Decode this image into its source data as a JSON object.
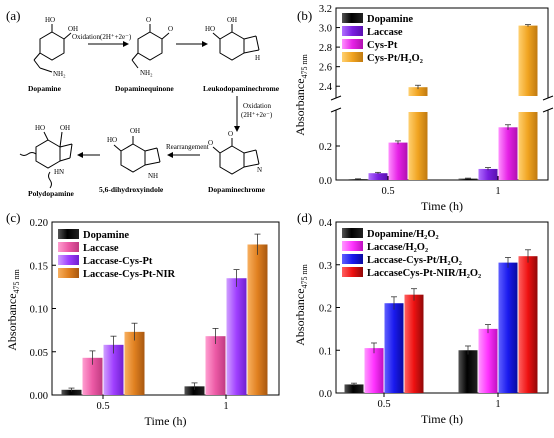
{
  "panels": {
    "a": "(a)",
    "b": "(b)",
    "c": "(c)",
    "d": "(d)"
  },
  "scheme": {
    "compounds": [
      "Dopamine",
      "Dopaminequinone",
      "Leukodopaminechrome",
      "Dopaminechrome",
      "5,6-dihydroxyindole",
      "Polydopamine"
    ],
    "step1": "Oxidation(2H⁺+2e⁻)",
    "step2_line1": "Oxidation",
    "step2_line2": "(2H⁺+2e⁻)",
    "step3": "Rearrangement",
    "atoms": {
      "ho": "HO",
      "oh": "OH",
      "o": "O",
      "nh2": "NH₂",
      "nh": "NH",
      "hn": "HN",
      "n": "N",
      "h": "H"
    }
  },
  "colors": {
    "dopamine": "#000000",
    "laccase": "#7b1fe0",
    "cys_pt": "#e622e6",
    "cys_pt_h2o2": "#f0a320",
    "c_laccase": "#ec5aa6",
    "c_laccase_cys_pt": "#a040ff",
    "c_laccase_cys_pt_nir": "#e08020",
    "d_laccase_h2o2": "#ff33ff",
    "d_laccase_cys_pt_h2o2": "#1a1aee",
    "d_laccase_cys_pt_nir_h2o2": "#ee1111"
  },
  "chart_data": [
    {
      "panel": "b",
      "type": "bar",
      "categories": [
        "0.5",
        "1"
      ],
      "xlabel": "Time (h)",
      "ylabel": "Absorbance",
      "ylabel_sub": "475 nm",
      "axis_break": true,
      "ylim_lower": [
        0,
        0.4
      ],
      "ylim_upper": [
        2.3,
        3.2
      ],
      "yticks_lower": [
        "0.0",
        "0.2"
      ],
      "yticks_upper": [
        "2.4",
        "2.6",
        "2.8",
        "3.0",
        "3.2"
      ],
      "legend_position": "top-left",
      "series": [
        {
          "name": "Dopamine",
          "values": [
            0.005,
            0.008
          ],
          "errors": [
            0.002,
            0.003
          ]
        },
        {
          "name": "Laccase",
          "values": [
            0.04,
            0.065
          ],
          "errors": [
            0.005,
            0.008
          ]
        },
        {
          "name": "Cys-Pt",
          "values": [
            0.22,
            0.31
          ],
          "errors": [
            0.01,
            0.015
          ]
        },
        {
          "name": "Cys-Pt/H₂O₂",
          "values": [
            2.39,
            3.02
          ],
          "errors": [
            0.02,
            0.01
          ]
        }
      ]
    },
    {
      "panel": "c",
      "type": "bar",
      "categories": [
        "0.5",
        "1"
      ],
      "xlabel": "Time (h)",
      "ylabel": "Absorbance",
      "ylabel_sub": "475 nm",
      "ylim": [
        0,
        0.2
      ],
      "yticks": [
        "0.00",
        "0.05",
        "0.10",
        "0.15",
        "0.20"
      ],
      "legend_position": "top-left",
      "series": [
        {
          "name": "Dopamine",
          "values": [
            0.006,
            0.01
          ],
          "errors": [
            0.002,
            0.004
          ]
        },
        {
          "name": "Laccase",
          "values": [
            0.043,
            0.068
          ],
          "errors": [
            0.008,
            0.009
          ]
        },
        {
          "name": "Laccase-Cys-Pt",
          "values": [
            0.058,
            0.135
          ],
          "errors": [
            0.01,
            0.01
          ]
        },
        {
          "name": "Laccase-Cys-Pt-NIR",
          "values": [
            0.073,
            0.174
          ],
          "errors": [
            0.01,
            0.012
          ]
        }
      ]
    },
    {
      "panel": "d",
      "type": "bar",
      "categories": [
        "0.5",
        "1"
      ],
      "xlabel": "Time (h)",
      "ylabel": "Absorbance",
      "ylabel_sub": "475 nm",
      "ylim": [
        0,
        0.4
      ],
      "yticks": [
        "0.0",
        "0.1",
        "0.2",
        "0.3",
        "0.4"
      ],
      "legend_position": "top-left",
      "series": [
        {
          "name": "Dopamine/H₂O₂",
          "values": [
            0.02,
            0.1
          ],
          "errors": [
            0.003,
            0.01
          ]
        },
        {
          "name": "Laccase/H₂O₂",
          "values": [
            0.105,
            0.15
          ],
          "errors": [
            0.012,
            0.01
          ]
        },
        {
          "name": "Laccase-Cys-Pt/H₂O₂",
          "values": [
            0.21,
            0.305
          ],
          "errors": [
            0.015,
            0.012
          ]
        },
        {
          "name": "LaccaseCys-Pt-NIR/H₂O₂",
          "values": [
            0.23,
            0.32
          ],
          "errors": [
            0.014,
            0.015
          ]
        }
      ]
    }
  ]
}
